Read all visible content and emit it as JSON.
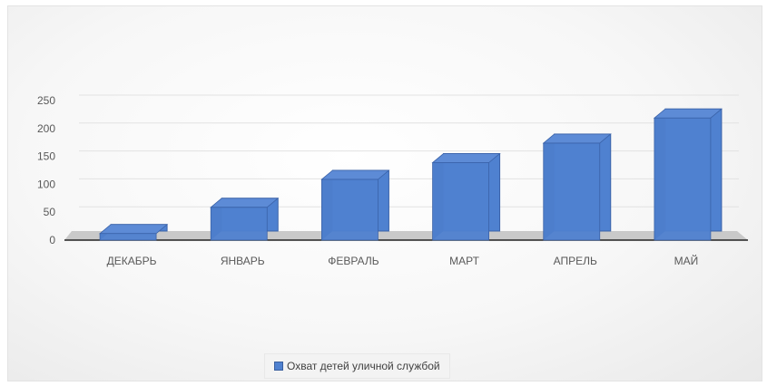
{
  "chart_data": {
    "type": "bar",
    "categories": [
      "ДЕКАБРЬ",
      "ЯНВАРЬ",
      "ФЕВРАЛЬ",
      "МАРТ",
      "АПРЕЛЬ",
      "МАЙ"
    ],
    "series": [
      {
        "name": "Охват детей уличной службой",
        "values": [
          28,
          75,
          125,
          155,
          190,
          235
        ]
      }
    ],
    "yticks": [
      0,
      50,
      100,
      150,
      200,
      250
    ],
    "ylim": [
      0,
      250
    ],
    "legend_position": "bottom",
    "grid": true,
    "colors": {
      "bar_front": "#4f81d0",
      "bar_side": "#2f4f86",
      "bar_top": "#5d8bd6"
    }
  }
}
